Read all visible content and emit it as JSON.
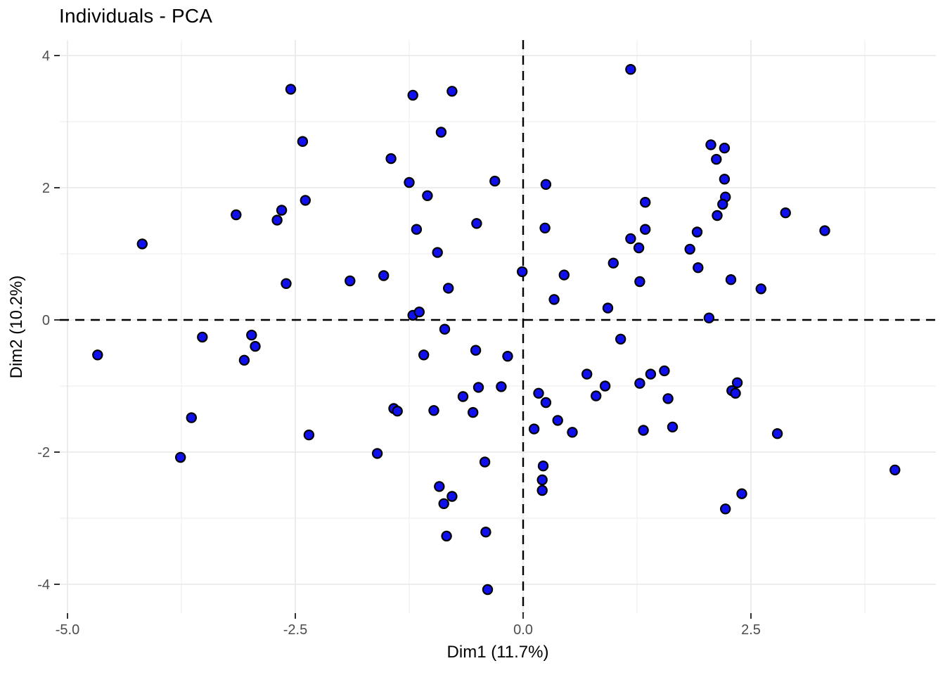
{
  "page": {
    "title": "Individuals - PCA"
  },
  "chart_data": {
    "type": "scatter",
    "title": "Individuals - PCA",
    "xlabel": "Dim1 (11.7%)",
    "ylabel": "Dim2 (10.2%)",
    "x_ticks": [
      -5.0,
      -2.5,
      0.0,
      2.5
    ],
    "x_tick_labels": [
      "-5.0",
      "-2.5",
      "0.0",
      "2.5"
    ],
    "x_minor_ticks": [
      -3.75,
      -1.25,
      1.25,
      3.75
    ],
    "y_ticks": [
      -4,
      -2,
      0,
      2,
      4
    ],
    "y_tick_labels": [
      "-4",
      "-2",
      "0",
      "2",
      "4"
    ],
    "y_minor_ticks": [
      -3,
      -1,
      1,
      3
    ],
    "xlim": [
      -5.08,
      4.52
    ],
    "ylim": [
      -4.44,
      4.22
    ],
    "grid": "major+minor",
    "legend": "none",
    "reference_lines": [
      {
        "axis": "vertical",
        "at": 0,
        "style": "dashed"
      },
      {
        "axis": "horizontal",
        "at": 0,
        "style": "dashed"
      }
    ],
    "point_style": {
      "shape": "circle",
      "fill": "#1010EE",
      "stroke": "#000000",
      "radius_px": 6.6
    },
    "colors": {
      "grid_major": "#E7E7E7",
      "grid_minor": "#F2F2F2",
      "tick_mark": "#333333",
      "tick_text": "#4D4D4D",
      "reference_line": "#000000",
      "background": "#FFFFFF"
    },
    "points": [
      [
        -3.15,
        1.59
      ],
      [
        -2.65,
        1.66
      ],
      [
        -2.7,
        1.51
      ],
      [
        -2.55,
        3.49
      ],
      [
        -1.21,
        3.4
      ],
      [
        -0.78,
        3.46
      ],
      [
        -0.9,
        2.84
      ],
      [
        -2.42,
        2.7
      ],
      [
        -1.45,
        2.44
      ],
      [
        -1.25,
        2.08
      ],
      [
        -0.31,
        2.1
      ],
      [
        -2.39,
        1.81
      ],
      [
        -1.05,
        1.88
      ],
      [
        -1.17,
        1.37
      ],
      [
        -0.51,
        1.46
      ],
      [
        1.18,
        3.79
      ],
      [
        2.06,
        2.65
      ],
      [
        2.21,
        2.6
      ],
      [
        2.12,
        2.43
      ],
      [
        2.21,
        2.13
      ],
      [
        2.22,
        1.86
      ],
      [
        2.19,
        1.75
      ],
      [
        2.13,
        1.58
      ],
      [
        0.25,
        2.05
      ],
      [
        1.34,
        1.78
      ],
      [
        0.24,
        1.39
      ],
      [
        2.88,
        1.62
      ],
      [
        3.31,
        1.35
      ],
      [
        1.34,
        1.37
      ],
      [
        1.91,
        1.33
      ],
      [
        1.18,
        1.23
      ],
      [
        1.27,
        1.09
      ],
      [
        1.83,
        1.07
      ],
      [
        1.92,
        0.79
      ],
      [
        -0.01,
        0.73
      ],
      [
        0.45,
        0.68
      ],
      [
        0.99,
        0.86
      ],
      [
        1.28,
        0.58
      ],
      [
        0.34,
        0.31
      ],
      [
        0.93,
        0.18
      ],
      [
        2.04,
        0.03
      ],
      [
        1.07,
        -0.29
      ],
      [
        -0.17,
        -0.55
      ],
      [
        0.7,
        -0.82
      ],
      [
        1.4,
        -0.82
      ],
      [
        1.55,
        -0.77
      ],
      [
        1.28,
        -0.96
      ],
      [
        -0.24,
        -1.01
      ],
      [
        0.17,
        -1.11
      ],
      [
        0.9,
        -1.0
      ],
      [
        0.25,
        -1.25
      ],
      [
        0.8,
        -1.15
      ],
      [
        1.59,
        -1.19
      ],
      [
        0.38,
        -1.52
      ],
      [
        -4.18,
        1.15
      ],
      [
        -2.6,
        0.55
      ],
      [
        -3.52,
        -0.26
      ],
      [
        -2.98,
        -0.23
      ],
      [
        -2.94,
        -0.4
      ],
      [
        -3.06,
        -0.61
      ],
      [
        -4.67,
        -0.53
      ],
      [
        -3.64,
        -1.48
      ],
      [
        -0.94,
        1.02
      ],
      [
        -1.9,
        0.59
      ],
      [
        -1.53,
        0.67
      ],
      [
        -0.82,
        0.48
      ],
      [
        -1.21,
        0.07
      ],
      [
        -1.14,
        0.12
      ],
      [
        -0.86,
        -0.14
      ],
      [
        -1.09,
        -0.53
      ],
      [
        -0.52,
        -0.46
      ],
      [
        -0.49,
        -1.02
      ],
      [
        -0.66,
        -1.16
      ],
      [
        -1.42,
        -1.34
      ],
      [
        -1.38,
        -1.38
      ],
      [
        -0.98,
        -1.37
      ],
      [
        -0.55,
        -1.4
      ],
      [
        2.28,
        0.61
      ],
      [
        2.61,
        0.47
      ],
      [
        2.35,
        -0.95
      ],
      [
        2.29,
        -1.07
      ],
      [
        2.33,
        -1.11
      ],
      [
        -3.76,
        -2.08
      ],
      [
        -2.35,
        -1.74
      ],
      [
        -1.6,
        -2.02
      ],
      [
        -0.42,
        -2.15
      ],
      [
        -0.92,
        -2.52
      ],
      [
        -0.78,
        -2.67
      ],
      [
        -0.87,
        -2.78
      ],
      [
        -0.84,
        -3.27
      ],
      [
        -0.41,
        -3.21
      ],
      [
        -0.39,
        -4.08
      ],
      [
        0.12,
        -1.65
      ],
      [
        0.54,
        -1.7
      ],
      [
        1.32,
        -1.67
      ],
      [
        1.64,
        -1.62
      ],
      [
        0.22,
        -2.21
      ],
      [
        0.21,
        -2.42
      ],
      [
        0.21,
        -2.58
      ],
      [
        2.79,
        -1.72
      ],
      [
        4.08,
        -2.27
      ],
      [
        2.4,
        -2.63
      ],
      [
        2.22,
        -2.86
      ]
    ]
  }
}
